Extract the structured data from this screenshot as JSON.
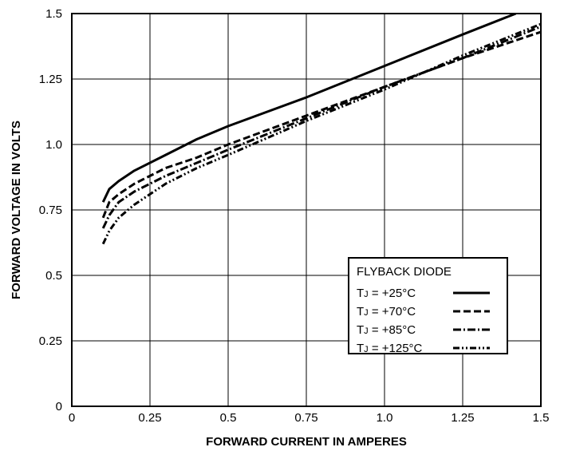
{
  "chart_data": {
    "type": "line",
    "title": "",
    "xlabel": "FORWARD CURRENT IN AMPERES",
    "ylabel": "FORWARD VOLTAGE IN VOLTS",
    "xlim": [
      0,
      1.5
    ],
    "ylim": [
      0,
      1.5
    ],
    "x_ticks": [
      {
        "value": 0,
        "label": "0"
      },
      {
        "value": 0.25,
        "label": "0.25"
      },
      {
        "value": 0.5,
        "label": "0.5"
      },
      {
        "value": 0.75,
        "label": "0.75"
      },
      {
        "value": 1.0,
        "label": "1.0"
      },
      {
        "value": 1.25,
        "label": "1.25"
      },
      {
        "value": 1.5,
        "label": "1.5"
      }
    ],
    "y_ticks": [
      {
        "value": 0,
        "label": "0"
      },
      {
        "value": 0.25,
        "label": "0.25"
      },
      {
        "value": 0.5,
        "label": "0.5"
      },
      {
        "value": 0.75,
        "label": "0.75"
      },
      {
        "value": 1.0,
        "label": "1.0"
      },
      {
        "value": 1.25,
        "label": "1.25"
      },
      {
        "value": 1.5,
        "label": "1.5"
      }
    ],
    "grid": true,
    "legend": {
      "title": "FLYBACK DIODE",
      "placement": "bottom-right"
    },
    "series": [
      {
        "name": "TJ = +25°C",
        "label_prefix": "T",
        "label_sub": "J",
        "label_suffix": " = +25°C",
        "dash": "solid",
        "points": [
          [
            0.1,
            0.78
          ],
          [
            0.12,
            0.83
          ],
          [
            0.15,
            0.86
          ],
          [
            0.2,
            0.9
          ],
          [
            0.3,
            0.96
          ],
          [
            0.4,
            1.02
          ],
          [
            0.5,
            1.07
          ],
          [
            0.75,
            1.18
          ],
          [
            1.0,
            1.3
          ],
          [
            1.25,
            1.42
          ],
          [
            1.42,
            1.5
          ]
        ]
      },
      {
        "name": "TJ = +70°C",
        "label_prefix": "T",
        "label_sub": "J",
        "label_suffix": " = +70°C",
        "dash": "dashed",
        "points": [
          [
            0.1,
            0.72
          ],
          [
            0.12,
            0.78
          ],
          [
            0.15,
            0.81
          ],
          [
            0.2,
            0.85
          ],
          [
            0.3,
            0.91
          ],
          [
            0.4,
            0.95
          ],
          [
            0.5,
            1.0
          ],
          [
            0.75,
            1.11
          ],
          [
            1.0,
            1.22
          ],
          [
            1.25,
            1.33
          ],
          [
            1.5,
            1.43
          ]
        ]
      },
      {
        "name": "TJ = +85°C",
        "label_prefix": "T",
        "label_sub": "J",
        "label_suffix": " = +85°C",
        "dash": "dashdot",
        "points": [
          [
            0.1,
            0.68
          ],
          [
            0.12,
            0.73
          ],
          [
            0.15,
            0.78
          ],
          [
            0.2,
            0.82
          ],
          [
            0.3,
            0.88
          ],
          [
            0.4,
            0.93
          ],
          [
            0.5,
            0.98
          ],
          [
            0.75,
            1.1
          ],
          [
            1.0,
            1.22
          ],
          [
            1.25,
            1.33
          ],
          [
            1.5,
            1.45
          ]
        ]
      },
      {
        "name": "TJ = +125°C",
        "label_prefix": "T",
        "label_sub": "J",
        "label_suffix": " = +125°C",
        "dash": "dashdotdot",
        "points": [
          [
            0.1,
            0.62
          ],
          [
            0.12,
            0.67
          ],
          [
            0.15,
            0.72
          ],
          [
            0.2,
            0.77
          ],
          [
            0.3,
            0.85
          ],
          [
            0.4,
            0.91
          ],
          [
            0.5,
            0.96
          ],
          [
            0.75,
            1.09
          ],
          [
            1.0,
            1.21
          ],
          [
            1.25,
            1.34
          ],
          [
            1.5,
            1.46
          ]
        ]
      }
    ]
  }
}
